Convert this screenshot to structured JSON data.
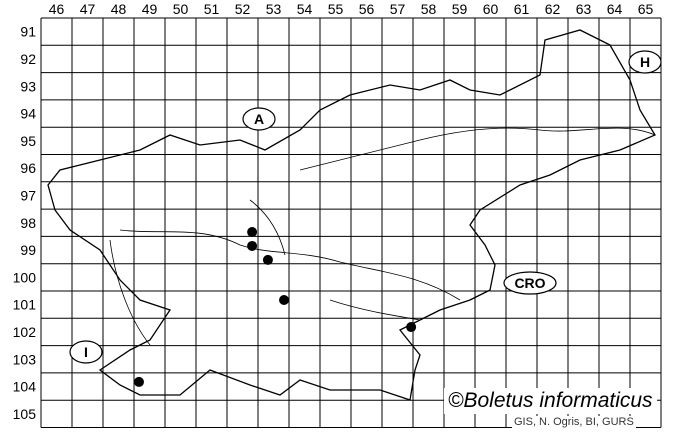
{
  "map": {
    "columns": [
      "46",
      "47",
      "48",
      "49",
      "50",
      "51",
      "52",
      "53",
      "54",
      "55",
      "56",
      "57",
      "58",
      "59",
      "60",
      "61",
      "62",
      "63",
      "64",
      "65"
    ],
    "rows": [
      "91",
      "92",
      "93",
      "94",
      "95",
      "96",
      "97",
      "98",
      "99",
      "100",
      "101",
      "102",
      "103",
      "104",
      "105"
    ],
    "country_labels": [
      {
        "id": "austria",
        "text": "A"
      },
      {
        "id": "hungary",
        "text": "H"
      },
      {
        "id": "croatia",
        "text": "CRO"
      },
      {
        "id": "italy",
        "text": "I"
      }
    ],
    "records": [
      {
        "col": 52.81,
        "row": 98.84
      },
      {
        "col": 52.81,
        "row": 99.35
      },
      {
        "col": 53.32,
        "row": 99.86
      },
      {
        "col": 53.84,
        "row": 101.33
      },
      {
        "col": 57.94,
        "row": 102.32
      },
      {
        "col": 49.16,
        "row": 104.33
      }
    ],
    "colors": {
      "lines": "#000000",
      "records": "#000000",
      "background": "#ffffff"
    }
  },
  "copyright": "©Boletus informaticus",
  "credits": "GIS, N. Ogris, BI, GURS"
}
